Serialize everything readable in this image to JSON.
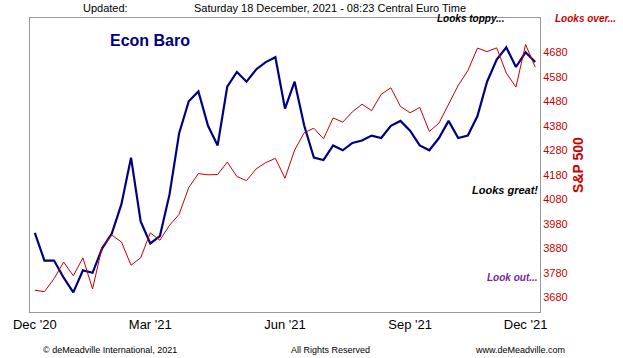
{
  "chart_data": {
    "type": "line",
    "title": "Econ Baro",
    "header": [
      "Updated:",
      "Saturday 18 December, 2021 - 08:23 Central Euro Time"
    ],
    "footer": [
      "© deMeadville International, 2021",
      "All Rights Reserved",
      "www.deMeadville.com"
    ],
    "categories": [
      "Dec '20",
      null,
      null,
      null,
      null,
      null,
      null,
      null,
      null,
      null,
      null,
      null,
      "Mar '21",
      null,
      null,
      null,
      null,
      null,
      null,
      null,
      null,
      null,
      null,
      null,
      null,
      null,
      "Jun '21",
      null,
      null,
      null,
      null,
      null,
      null,
      null,
      null,
      null,
      null,
      null,
      null,
      "Sep '21",
      null,
      null,
      null,
      null,
      null,
      null,
      null,
      null,
      null,
      null,
      null,
      "Dec '21",
      null
    ],
    "series": [
      {
        "color": "#000080",
        "values": [
          3943,
          3830,
          3830,
          3760,
          3700,
          3790,
          3780,
          3880,
          3940,
          4060,
          4250,
          3990,
          3900,
          3930,
          4100,
          4350,
          4480,
          4520,
          4380,
          4300,
          4540,
          4600,
          4560,
          4610,
          4640,
          4660,
          4450,
          4560,
          4380,
          4250,
          4240,
          4300,
          4280,
          4310,
          4320,
          4340,
          4330,
          4380,
          4400,
          4360,
          4300,
          4280,
          4330,
          4400,
          4330,
          4340,
          4420,
          4560,
          4650,
          4700,
          4620,
          4680,
          4640
        ]
      },
      {
        "color": "#cc0000",
        "values": [
          3709,
          3703,
          3756,
          3824,
          3768,
          3841,
          3714,
          3886,
          3934,
          3906,
          3811,
          3841,
          3943,
          3913,
          3974,
          4019,
          4128,
          4185,
          4180,
          4181,
          4232,
          4173,
          4156,
          4204,
          4230,
          4247,
          4166,
          4281,
          4352,
          4370,
          4327,
          4412,
          4395,
          4437,
          4468,
          4442,
          4509,
          4535,
          4459,
          4433,
          4455,
          4357,
          4391,
          4471,
          4545,
          4605,
          4697,
          4683,
          4698,
          4595,
          4538,
          4712,
          4620
        ]
      }
    ],
    "y_label": "S&P 500",
    "ylim": [
      3620,
      4820
    ],
    "yticks": [
      3680,
      3780,
      3880,
      3980,
      4080,
      4180,
      4280,
      4380,
      4480,
      4580,
      4680
    ],
    "annotations": [
      {
        "text": "Looks toppy...",
        "color": "#000000"
      },
      {
        "text": "Looks over...",
        "color": "#cc0000"
      },
      {
        "text": "Looks great!",
        "color": "#000000"
      },
      {
        "text": "Look out...",
        "color": "#7a1fa2"
      }
    ],
    "grid": false
  }
}
